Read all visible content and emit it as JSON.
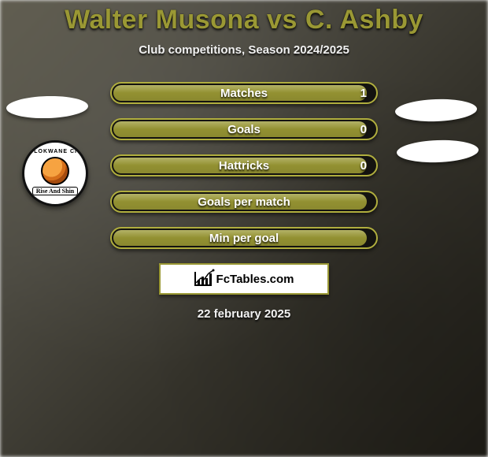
{
  "title": "Walter Musona vs C. Ashby",
  "subtitle": "Club competitions, Season 2024/2025",
  "date": "22 february 2025",
  "logo_text": "FcTables.com",
  "colors": {
    "accent": "#9a9834",
    "bar_border": "#b0ae3e",
    "bar_fill": "#9a9834",
    "title": "#9a9834"
  },
  "club_badge": {
    "top_text": "POLOKWANE CITY",
    "ribbon": "Rise And Shin"
  },
  "bars": [
    {
      "label": "Matches",
      "value": "1",
      "fill_pct": 97,
      "show_value": true
    },
    {
      "label": "Goals",
      "value": "0",
      "fill_pct": 97,
      "show_value": true
    },
    {
      "label": "Hattricks",
      "value": "0",
      "fill_pct": 97,
      "show_value": true
    },
    {
      "label": "Goals per match",
      "value": "",
      "fill_pct": 97,
      "show_value": false
    },
    {
      "label": "Min per goal",
      "value": "",
      "fill_pct": 97,
      "show_value": false
    }
  ]
}
